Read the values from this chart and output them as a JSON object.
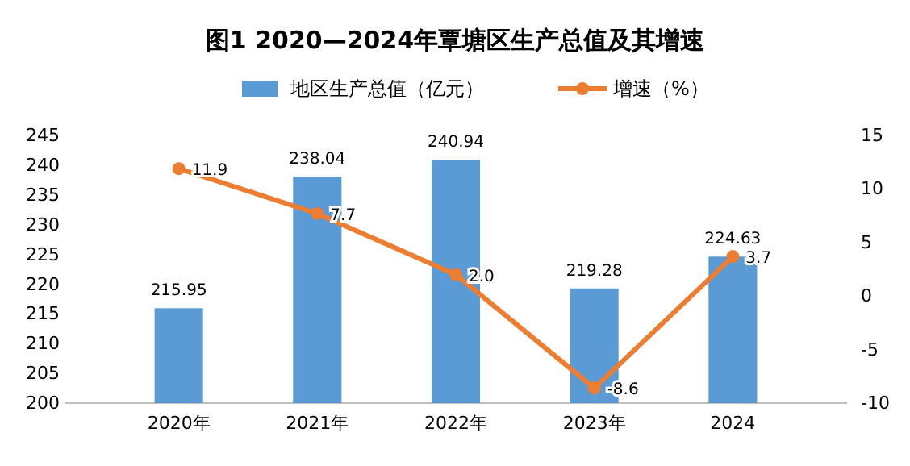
{
  "chart_data": {
    "type": "bar",
    "title": "图1  2020—2024年覃塘区生产总值及其增速",
    "categories": [
      "2020年",
      "2021年",
      "2022年",
      "2023年",
      "2024"
    ],
    "series": [
      {
        "name": "地区生产总值（亿元）",
        "color": "#5b9bd5",
        "values": [
          215.95,
          238.04,
          240.94,
          219.28,
          224.63
        ],
        "value_labels": [
          "215.95",
          "238.04",
          "240.94",
          "219.28",
          "224.63"
        ]
      },
      {
        "name": "增速（%）",
        "type": "line",
        "axis": "y2",
        "color": "#ed7d31",
        "values": [
          11.9,
          7.7,
          2.0,
          -8.6,
          3.7
        ],
        "value_labels": [
          "11.9",
          "7.7",
          "2.0",
          "-8.6",
          "3.7"
        ]
      }
    ],
    "ylim": [
      200,
      245
    ],
    "yticks": [
      200,
      205,
      210,
      215,
      220,
      225,
      230,
      235,
      240,
      245
    ],
    "y2lim": [
      -10,
      15
    ],
    "y2ticks": [
      -10,
      -5,
      0,
      5,
      10,
      15
    ],
    "legend": "top",
    "marker": "circle",
    "line_style": "solid"
  }
}
